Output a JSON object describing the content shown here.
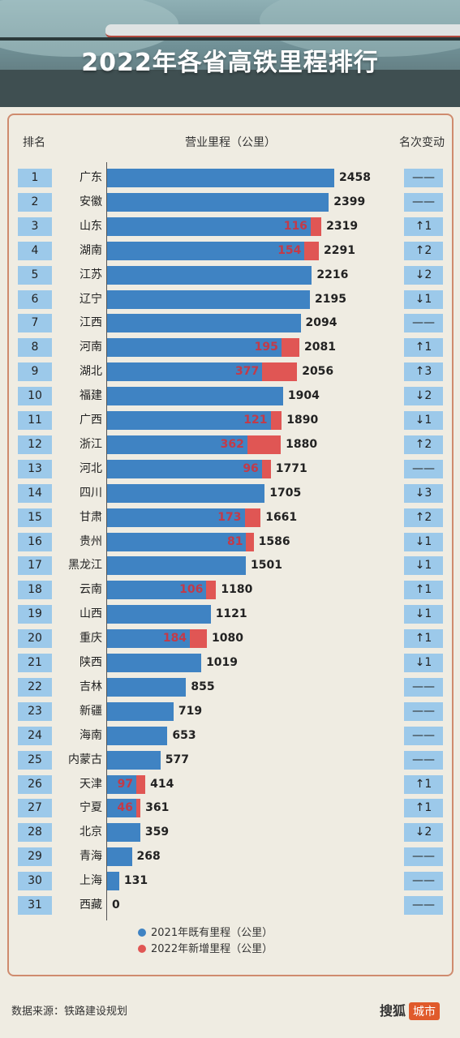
{
  "title": "2022年各省高铁里程排行",
  "headers": {
    "rank": "排名",
    "mileage": "营业里程（公里）",
    "change": "名次变动"
  },
  "colors": {
    "existing": "#3f83c3",
    "new": "#e05654",
    "rank_box": "#9cc9ea",
    "new_label": "#c33a48"
  },
  "legend": {
    "existing": "2021年既有里程（公里）",
    "new": "2022年新增里程（公里）"
  },
  "source": "数据来源：铁路建设规划",
  "brand": {
    "name": "搜狐",
    "tag": "城市"
  },
  "chart_data": {
    "type": "bar",
    "orientation": "horizontal",
    "stacked": true,
    "title": "2022年各省高铁里程排行",
    "xlabel": "营业里程（公里）",
    "xlim": [
      0,
      2458
    ],
    "rows": [
      {
        "rank": "1",
        "province": "广东",
        "total": 2458,
        "new": 0,
        "change": "——"
      },
      {
        "rank": "2",
        "province": "安徽",
        "total": 2399,
        "new": 0,
        "change": "——"
      },
      {
        "rank": "3",
        "province": "山东",
        "total": 2319,
        "new": 116,
        "change": "↑1"
      },
      {
        "rank": "4",
        "province": "湖南",
        "total": 2291,
        "new": 154,
        "change": "↑2"
      },
      {
        "rank": "5",
        "province": "江苏",
        "total": 2216,
        "new": 0,
        "change": "↓2"
      },
      {
        "rank": "6",
        "province": "辽宁",
        "total": 2195,
        "new": 0,
        "change": "↓1"
      },
      {
        "rank": "7",
        "province": "江西",
        "total": 2094,
        "new": 0,
        "change": "——"
      },
      {
        "rank": "8",
        "province": "河南",
        "total": 2081,
        "new": 195,
        "change": "↑1"
      },
      {
        "rank": "9",
        "province": "湖北",
        "total": 2056,
        "new": 377,
        "change": "↑3"
      },
      {
        "rank": "10",
        "province": "福建",
        "total": 1904,
        "new": 0,
        "change": "↓2"
      },
      {
        "rank": "11",
        "province": "广西",
        "total": 1890,
        "new": 121,
        "change": "↓1"
      },
      {
        "rank": "12",
        "province": "浙江",
        "total": 1880,
        "new": 362,
        "change": "↑2"
      },
      {
        "rank": "13",
        "province": "河北",
        "total": 1771,
        "new": 96,
        "change": "——"
      },
      {
        "rank": "14",
        "province": "四川",
        "total": 1705,
        "new": 0,
        "change": "↓3"
      },
      {
        "rank": "15",
        "province": "甘肃",
        "total": 1661,
        "new": 173,
        "change": "↑2"
      },
      {
        "rank": "16",
        "province": "贵州",
        "total": 1586,
        "new": 81,
        "change": "↓1"
      },
      {
        "rank": "17",
        "province": "黑龙江",
        "total": 1501,
        "new": 0,
        "change": "↓1"
      },
      {
        "rank": "18",
        "province": "云南",
        "total": 1180,
        "new": 106,
        "change": "↑1"
      },
      {
        "rank": "19",
        "province": "山西",
        "total": 1121,
        "new": 0,
        "change": "↓1"
      },
      {
        "rank": "20",
        "province": "重庆",
        "total": 1080,
        "new": 184,
        "change": "↑1"
      },
      {
        "rank": "21",
        "province": "陕西",
        "total": 1019,
        "new": 0,
        "change": "↓1"
      },
      {
        "rank": "22",
        "province": "吉林",
        "total": 855,
        "new": 0,
        "change": "——"
      },
      {
        "rank": "23",
        "province": "新疆",
        "total": 719,
        "new": 0,
        "change": "——"
      },
      {
        "rank": "24",
        "province": "海南",
        "total": 653,
        "new": 0,
        "change": "——"
      },
      {
        "rank": "25",
        "province": "内蒙古",
        "total": 577,
        "new": 0,
        "change": "——"
      },
      {
        "rank": "26",
        "province": "天津",
        "total": 414,
        "new": 97,
        "change": "↑1"
      },
      {
        "rank": "27",
        "province": "宁夏",
        "total": 361,
        "new": 46,
        "change": "↑1"
      },
      {
        "rank": "28",
        "province": "北京",
        "total": 359,
        "new": 0,
        "change": "↓2"
      },
      {
        "rank": "29",
        "province": "青海",
        "total": 268,
        "new": 0,
        "change": "——"
      },
      {
        "rank": "30",
        "province": "上海",
        "total": 131,
        "new": 0,
        "change": "——"
      },
      {
        "rank": "31",
        "province": "西藏",
        "total": 0,
        "new": 0,
        "change": "——"
      }
    ]
  }
}
